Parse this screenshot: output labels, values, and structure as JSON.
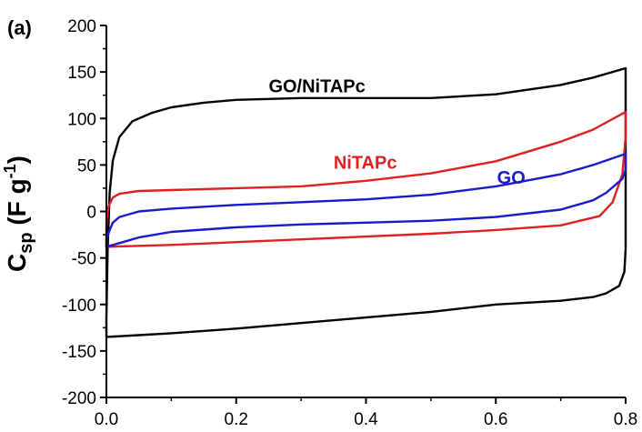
{
  "chart_data": {
    "type": "line",
    "panel_label": "(a)",
    "title": "",
    "xlabel": "",
    "ylabel": "Csp (F g-1)",
    "ylabel_main": "C",
    "ylabel_sub": "sp",
    "ylabel_unit": " (F g",
    "ylabel_sup": "-1",
    "ylabel_close": ")",
    "xlim": [
      0.0,
      0.8
    ],
    "ylim": [
      -200,
      200
    ],
    "x_ticks": [
      0.0,
      0.2,
      0.4,
      0.6,
      0.8
    ],
    "x_tick_labels": [
      "0.0",
      "0.2",
      "0.4",
      "0.6",
      "0.8"
    ],
    "y_ticks": [
      -200,
      -150,
      -100,
      -50,
      0,
      50,
      100,
      150,
      200
    ],
    "y_tick_labels": [
      "-200",
      "-150",
      "-100",
      "-50",
      "0",
      "50",
      "100",
      "150",
      "200"
    ],
    "grid": false,
    "series": [
      {
        "name": "GO/NiTAPc",
        "color": "#000000",
        "label_x": 0.25,
        "label_y": 128,
        "points": [
          [
            0.0,
            -115
          ],
          [
            0.002,
            -40
          ],
          [
            0.005,
            20
          ],
          [
            0.01,
            55
          ],
          [
            0.02,
            80
          ],
          [
            0.04,
            97
          ],
          [
            0.07,
            106
          ],
          [
            0.1,
            112
          ],
          [
            0.15,
            117
          ],
          [
            0.2,
            120
          ],
          [
            0.3,
            122
          ],
          [
            0.4,
            122
          ],
          [
            0.5,
            122
          ],
          [
            0.6,
            126
          ],
          [
            0.7,
            136
          ],
          [
            0.75,
            144
          ],
          [
            0.8,
            154
          ],
          [
            0.8,
            -40
          ],
          [
            0.798,
            -65
          ],
          [
            0.79,
            -80
          ],
          [
            0.77,
            -88
          ],
          [
            0.75,
            -92
          ],
          [
            0.7,
            -96
          ],
          [
            0.6,
            -100
          ],
          [
            0.5,
            -108
          ],
          [
            0.4,
            -114
          ],
          [
            0.3,
            -120
          ],
          [
            0.2,
            -126
          ],
          [
            0.1,
            -131
          ],
          [
            0.05,
            -133
          ],
          [
            0.0,
            -135
          ]
        ]
      },
      {
        "name": "NiTAPc",
        "color": "#e02020",
        "label_x": 0.35,
        "label_y": 46,
        "points": [
          [
            0.0,
            -15
          ],
          [
            0.003,
            5
          ],
          [
            0.01,
            15
          ],
          [
            0.02,
            19
          ],
          [
            0.05,
            22
          ],
          [
            0.1,
            23
          ],
          [
            0.2,
            25
          ],
          [
            0.3,
            27
          ],
          [
            0.4,
            33
          ],
          [
            0.5,
            41
          ],
          [
            0.6,
            54
          ],
          [
            0.7,
            75
          ],
          [
            0.75,
            88
          ],
          [
            0.8,
            107
          ],
          [
            0.8,
            80
          ],
          [
            0.795,
            40
          ],
          [
            0.78,
            10
          ],
          [
            0.76,
            -5
          ],
          [
            0.7,
            -15
          ],
          [
            0.6,
            -20
          ],
          [
            0.5,
            -24
          ],
          [
            0.4,
            -27
          ],
          [
            0.3,
            -30
          ],
          [
            0.2,
            -33
          ],
          [
            0.1,
            -36
          ],
          [
            0.05,
            -37
          ],
          [
            0.0,
            -38
          ]
        ]
      },
      {
        "name": "GO",
        "color": "#1a1acc",
        "label_x": 0.602,
        "label_y": 30,
        "points": [
          [
            0.0,
            -30
          ],
          [
            0.005,
            -20
          ],
          [
            0.01,
            -12
          ],
          [
            0.02,
            -6
          ],
          [
            0.05,
            0
          ],
          [
            0.1,
            3
          ],
          [
            0.2,
            7
          ],
          [
            0.3,
            10
          ],
          [
            0.4,
            13
          ],
          [
            0.5,
            18
          ],
          [
            0.6,
            27
          ],
          [
            0.7,
            40
          ],
          [
            0.75,
            50
          ],
          [
            0.8,
            62
          ],
          [
            0.8,
            45
          ],
          [
            0.795,
            35
          ],
          [
            0.77,
            20
          ],
          [
            0.75,
            12
          ],
          [
            0.7,
            2
          ],
          [
            0.6,
            -6
          ],
          [
            0.5,
            -10
          ],
          [
            0.4,
            -12
          ],
          [
            0.3,
            -14
          ],
          [
            0.2,
            -17
          ],
          [
            0.1,
            -22
          ],
          [
            0.05,
            -28
          ],
          [
            0.02,
            -34
          ],
          [
            0.0,
            -38
          ]
        ]
      }
    ]
  }
}
